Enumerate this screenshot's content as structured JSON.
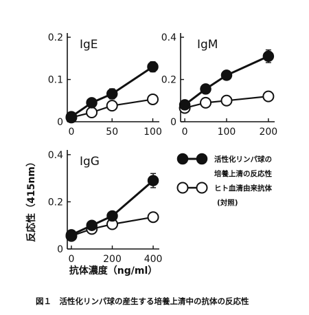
{
  "y_axis_label": "反応性（415nm）",
  "x_axis_label": "抗体濃度（ng/ml）",
  "caption": "図１　活性化リンパ球の産生する培養上清中の抗体の反応性",
  "legend": {
    "items": [
      {
        "lines": [
          "活性化リンパ球の",
          "培養上清の反応性"
        ],
        "marker": "filled"
      },
      {
        "lines": [
          "ヒト血清由来抗体",
          "(対照)"
        ],
        "marker": "open"
      }
    ]
  },
  "chart_data": [
    {
      "type": "line",
      "title": "IgE",
      "x_ticks": [
        0,
        50,
        100
      ],
      "y_ticks": [
        "0",
        "0.1",
        "0.2"
      ],
      "xlim": [
        -5,
        108
      ],
      "ylim": [
        0,
        0.21
      ],
      "series": [
        {
          "name": "活性化リンパ球の培養上清の反応性",
          "marker": "filled",
          "x": [
            0,
            25,
            50,
            100
          ],
          "y": [
            0.012,
            0.045,
            0.066,
            0.13
          ],
          "err": [
            0,
            0,
            0.012,
            0.012
          ]
        },
        {
          "name": "ヒト血清由来抗体(対照)",
          "marker": "open",
          "x": [
            0,
            25,
            50,
            100
          ],
          "y": [
            0.01,
            0.022,
            0.038,
            0.053
          ],
          "err": [
            0,
            0,
            0,
            0.01
          ]
        }
      ]
    },
    {
      "type": "line",
      "title": "IgM",
      "x_ticks": [
        0,
        100,
        200
      ],
      "y_ticks": [
        "0",
        "0.2",
        "0.4"
      ],
      "xlim": [
        -10,
        215
      ],
      "ylim": [
        0,
        0.42
      ],
      "series": [
        {
          "name": "活性化リンパ球の培養上清の反応性",
          "marker": "filled",
          "x": [
            0,
            50,
            100,
            200
          ],
          "y": [
            0.08,
            0.155,
            0.22,
            0.31
          ],
          "err": [
            0,
            0,
            0,
            0.03
          ]
        },
        {
          "name": "ヒト血清由来抗体(対照)",
          "marker": "open",
          "x": [
            0,
            50,
            100,
            200
          ],
          "y": [
            0.065,
            0.09,
            0.1,
            0.12
          ],
          "err": [
            0,
            0,
            0,
            0
          ]
        }
      ]
    },
    {
      "type": "line",
      "title": "IgG",
      "x_ticks": [
        0,
        200,
        400
      ],
      "y_ticks": [
        "0",
        "0.2",
        "0.4"
      ],
      "xlim": [
        -20,
        430
      ],
      "ylim": [
        0,
        0.42
      ],
      "series": [
        {
          "name": "活性化リンパ球の培養上清の反応性",
          "marker": "filled",
          "x": [
            0,
            100,
            200,
            400
          ],
          "y": [
            0.06,
            0.1,
            0.14,
            0.29
          ],
          "err": [
            0,
            0.015,
            0,
            0.03
          ]
        },
        {
          "name": "ヒト血清由来抗体(対照)",
          "marker": "open",
          "x": [
            0,
            100,
            200,
            400
          ],
          "y": [
            0.055,
            0.085,
            0.105,
            0.135
          ],
          "err": [
            0,
            0,
            0,
            0
          ]
        }
      ]
    }
  ]
}
